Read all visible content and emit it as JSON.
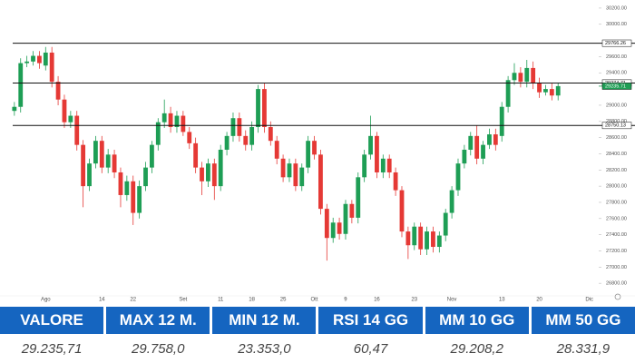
{
  "chart_data": {
    "type": "candlestick",
    "up_color": "#1e9e55",
    "down_color": "#e53935",
    "xlim": [
      -2.3,
      93.5
    ],
    "xticks": [
      {
        "value": 5,
        "label": "Ago"
      },
      {
        "value": 14,
        "label": "14"
      },
      {
        "value": 19,
        "label": "22"
      },
      {
        "value": 27,
        "label": "Set"
      },
      {
        "value": 33,
        "label": "11"
      },
      {
        "value": 38,
        "label": "18"
      },
      {
        "value": 43,
        "label": "25"
      },
      {
        "value": 48,
        "label": "Ott"
      },
      {
        "value": 53,
        "label": "9"
      },
      {
        "value": 58,
        "label": "16"
      },
      {
        "value": 64,
        "label": "23"
      },
      {
        "value": 70,
        "label": "Nov"
      },
      {
        "value": 78,
        "label": "13"
      },
      {
        "value": 84,
        "label": "20"
      },
      {
        "value": 92,
        "label": "Dic"
      }
    ],
    "ylim": [
      26600,
      30300
    ],
    "yticks": [
      {
        "value": 30200,
        "label": "30200.00"
      },
      {
        "value": 30000,
        "label": "30000.00"
      },
      {
        "value": 29600,
        "label": "29600.00"
      },
      {
        "value": 29400,
        "label": "29400.00"
      },
      {
        "value": 29000,
        "label": "29000.00"
      },
      {
        "value": 28800,
        "label": "28800.00"
      },
      {
        "value": 28600,
        "label": "28600.00"
      },
      {
        "value": 28400,
        "label": "28400.00"
      },
      {
        "value": 28200,
        "label": "28200.00"
      },
      {
        "value": 28000,
        "label": "28000.00"
      },
      {
        "value": 27800,
        "label": "27800.00"
      },
      {
        "value": 27600,
        "label": "27600.00"
      },
      {
        "value": 27400,
        "label": "27400.00"
      },
      {
        "value": 27200,
        "label": "27200.00"
      },
      {
        "value": 27000,
        "label": "27000.00"
      },
      {
        "value": 26800,
        "label": "26800.00"
      }
    ],
    "levels": [
      {
        "value": 29766.26,
        "label": "29766.26"
      },
      {
        "value": 29274.71,
        "label": "29274.71"
      },
      {
        "value": 28750.13,
        "label": "28750.13"
      }
    ],
    "last_price": {
      "value": 29235.71,
      "label": "29235.71"
    },
    "open": [
      28930,
      28980,
      29520,
      29540,
      29610,
      29490,
      29650,
      29290,
      29070,
      28790,
      28870,
      28510,
      28000,
      28280,
      28560,
      28230,
      28390,
      28170,
      27890,
      28060,
      27670,
      28000,
      28230,
      28510,
      28790,
      28900,
      28730,
      28870,
      28670,
      28530,
      28230,
      28060,
      28280,
      28000,
      28450,
      28620,
      28840,
      28620,
      28510,
      28730,
      29200,
      28730,
      28560,
      28340,
      28110,
      28280,
      28000,
      28230,
      28560,
      28390,
      27720,
      27360,
      27550,
      27410,
      27780,
      27610,
      28110,
      28390,
      28620,
      28170,
      28340,
      28170,
      27950,
      27440,
      27270,
      27500,
      27220,
      27440,
      27250,
      27390,
      27670,
      27950,
      28280,
      28450,
      28620,
      28340,
      28510,
      28640,
      28620,
      28980,
      29310,
      29400,
      29290,
      29460,
      29270,
      29160,
      29200,
      29120
    ],
    "high": [
      29040,
      29580,
      29610,
      29670,
      29670,
      29720,
      29720,
      29360,
      29130,
      28930,
      28930,
      28570,
      28340,
      28620,
      28620,
      28460,
      28450,
      28230,
      28130,
      28130,
      28070,
      28300,
      28560,
      28840,
      29070,
      28980,
      28930,
      28930,
      28730,
      28600,
      28300,
      28340,
      28340,
      28510,
      28670,
      28910,
      28910,
      28690,
      28800,
      29250,
      29270,
      28800,
      28620,
      28390,
      28340,
      28340,
      28280,
      28620,
      28620,
      28450,
      27780,
      27610,
      27610,
      27830,
      27830,
      28170,
      28450,
      28870,
      28670,
      28390,
      28390,
      28230,
      28000,
      27500,
      27550,
      27550,
      27500,
      27500,
      27440,
      27720,
      28000,
      28340,
      28510,
      28670,
      28750,
      28560,
      28710,
      28710,
      29040,
      29360,
      29520,
      29470,
      29560,
      29540,
      29340,
      29250,
      29270,
      29270
    ],
    "low": [
      28870,
      28910,
      29470,
      29490,
      29450,
      29430,
      29220,
      29000,
      28720,
      28720,
      28440,
      27740,
      27940,
      28220,
      28160,
      28160,
      28100,
      27740,
      27820,
      27520,
      27600,
      27940,
      28160,
      28440,
      28720,
      28660,
      28660,
      28620,
      28460,
      28160,
      27890,
      27990,
      27830,
      27940,
      28380,
      28550,
      28550,
      28440,
      28440,
      28660,
      28660,
      28500,
      28270,
      28050,
      28050,
      27940,
      27940,
      28160,
      28330,
      27650,
      27080,
      27300,
      27340,
      27340,
      27540,
      27540,
      28050,
      28330,
      28100,
      28100,
      28100,
      27880,
      27370,
      27100,
      27210,
      27150,
      27150,
      27180,
      27180,
      27320,
      27600,
      27880,
      28220,
      28380,
      28270,
      28270,
      28460,
      28440,
      28550,
      28910,
      29250,
      29220,
      29220,
      29200,
      29090,
      29120,
      29060,
      29060
    ],
    "close": [
      28980,
      29520,
      29540,
      29610,
      29520,
      29650,
      29290,
      29070,
      28790,
      28870,
      28510,
      28000,
      28280,
      28560,
      28230,
      28390,
      28170,
      27890,
      28060,
      27670,
      28000,
      28230,
      28510,
      28790,
      28900,
      28730,
      28870,
      28670,
      28530,
      28230,
      28060,
      28280,
      28000,
      28450,
      28620,
      28840,
      28620,
      28510,
      28730,
      29200,
      28730,
      28560,
      28340,
      28110,
      28280,
      28000,
      28230,
      28560,
      28390,
      27720,
      27360,
      27550,
      27410,
      27780,
      27610,
      28110,
      28390,
      28620,
      28170,
      28340,
      28170,
      27950,
      27440,
      27270,
      27500,
      27220,
      27440,
      27250,
      27390,
      27670,
      27950,
      28280,
      28450,
      28620,
      28340,
      28510,
      28640,
      28510,
      28980,
      29310,
      29400,
      29290,
      29460,
      29270,
      29160,
      29200,
      29120,
      29235.71
    ]
  },
  "table": {
    "headers": [
      "VALORE",
      "MAX 12 M.",
      "MIN 12 M.",
      "RSI 14 GG",
      "MM 10 GG",
      "MM 50 GG"
    ],
    "rows": [
      [
        "29.235,71",
        "29.758,0",
        "23.353,0",
        "60,47",
        "29.208,2",
        "28.331,9"
      ]
    ]
  }
}
